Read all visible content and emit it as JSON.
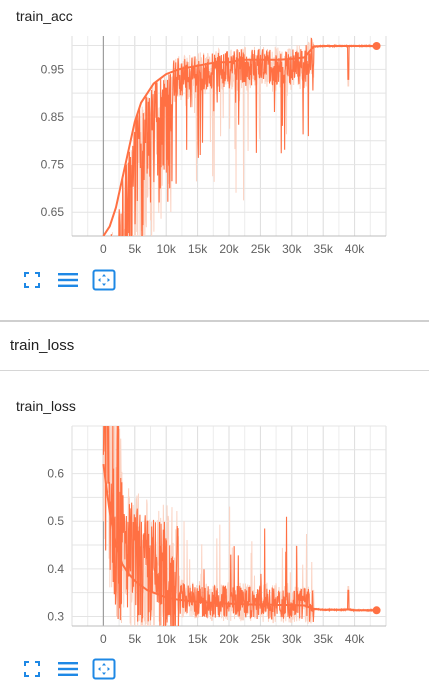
{
  "sections": {
    "loss_header": "train_loss"
  },
  "toolbar": {
    "icons": [
      "fit-to-data-icon",
      "toggle-log-scale-icon",
      "expand-chart-icon"
    ]
  },
  "colors": {
    "accent": "#ff7043",
    "smoothed_band": "#fbd3c3",
    "icon_blue": "#1e88e5"
  },
  "chart_data": [
    {
      "type": "line",
      "title": "train_acc",
      "xlabel": "",
      "ylabel": "",
      "xlim": [
        -5000,
        45000
      ],
      "ylim": [
        0.6,
        1.02
      ],
      "x_ticks": [
        0,
        5000,
        10000,
        15000,
        20000,
        25000,
        30000,
        35000,
        40000
      ],
      "x_tick_labels": [
        "0",
        "5k",
        "10k",
        "15k",
        "20k",
        "25k",
        "30k",
        "35k",
        "40k"
      ],
      "y_ticks": [
        0.65,
        0.75,
        0.85,
        0.95
      ],
      "y_tick_labels": [
        "0.65",
        "0.75",
        "0.85",
        "0.95"
      ],
      "grid": true,
      "series": [
        {
          "x": [
            0,
            1000,
            2000,
            3000,
            4000,
            5000,
            6000,
            7000,
            8000,
            9000,
            10000,
            12000,
            14000,
            16000,
            18000,
            20000,
            22000,
            24000,
            26000,
            28000,
            30000,
            32000,
            33500,
            35000,
            38000,
            39000,
            40000,
            43500
          ],
          "values": [
            0.6,
            0.62,
            0.66,
            0.72,
            0.78,
            0.84,
            0.88,
            0.9,
            0.92,
            0.93,
            0.94,
            0.95,
            0.955,
            0.96,
            0.965,
            0.965,
            0.97,
            0.97,
            0.97,
            0.97,
            0.972,
            0.975,
            0.998,
            0.999,
            0.999,
            0.999,
            0.999,
            0.999
          ]
        }
      ]
    },
    {
      "type": "line",
      "title": "train_loss",
      "xlabel": "",
      "ylabel": "",
      "xlim": [
        -5000,
        45000
      ],
      "ylim": [
        0.28,
        0.7
      ],
      "x_ticks": [
        0,
        5000,
        10000,
        15000,
        20000,
        25000,
        30000,
        35000,
        40000
      ],
      "x_tick_labels": [
        "0",
        "5k",
        "10k",
        "15k",
        "20k",
        "25k",
        "30k",
        "35k",
        "40k"
      ],
      "y_ticks": [
        0.3,
        0.4,
        0.5,
        0.6
      ],
      "y_tick_labels": [
        "0.3",
        "0.4",
        "0.5",
        "0.6"
      ],
      "grid": true,
      "series": [
        {
          "x": [
            0,
            1000,
            2000,
            3000,
            4000,
            5000,
            6000,
            7000,
            8000,
            9000,
            10000,
            12000,
            14000,
            16000,
            18000,
            20000,
            22000,
            24000,
            26000,
            28000,
            30000,
            32000,
            33500,
            35000,
            38000,
            39000,
            40000,
            43500
          ],
          "values": [
            0.62,
            0.52,
            0.45,
            0.41,
            0.39,
            0.375,
            0.365,
            0.355,
            0.35,
            0.345,
            0.34,
            0.335,
            0.332,
            0.33,
            0.328,
            0.327,
            0.326,
            0.325,
            0.325,
            0.324,
            0.324,
            0.323,
            0.316,
            0.314,
            0.314,
            0.315,
            0.313,
            0.313
          ]
        }
      ]
    }
  ]
}
